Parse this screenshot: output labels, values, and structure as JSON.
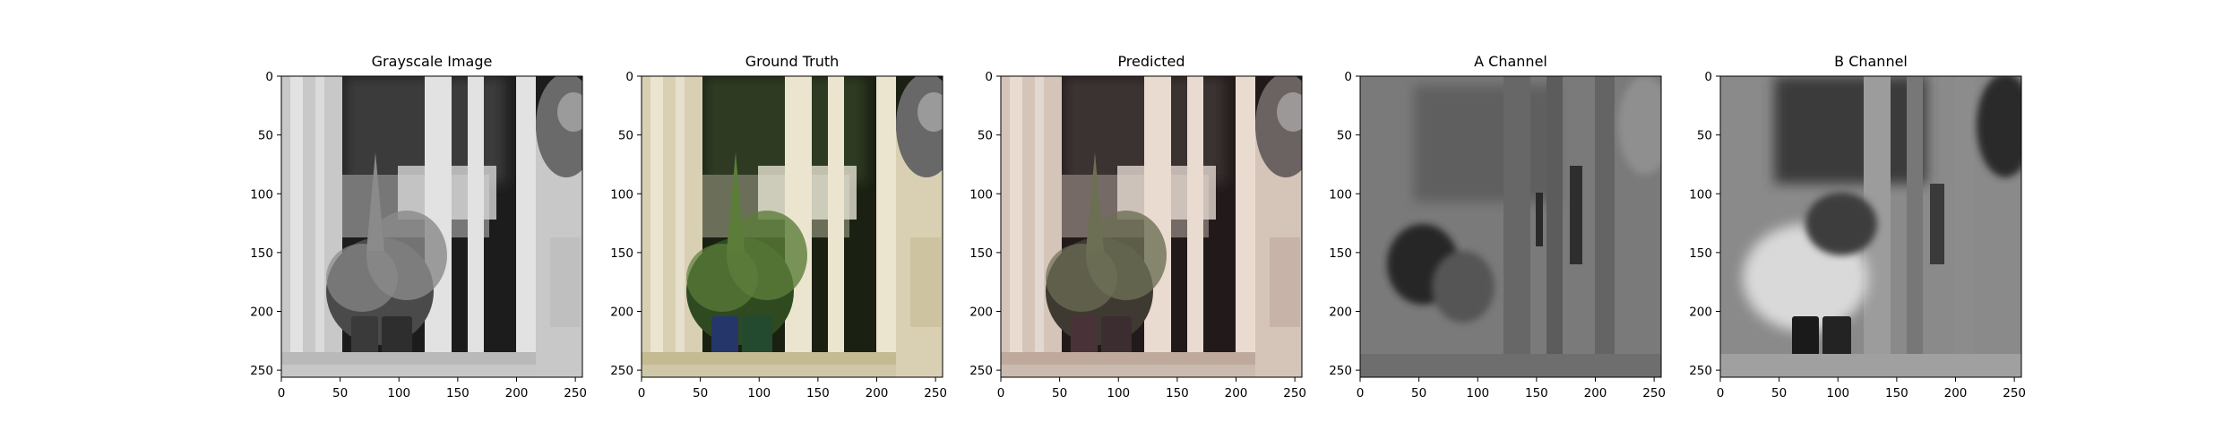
{
  "figure": {
    "background": "#ffffff"
  },
  "chart_data": [
    {
      "type": "image",
      "title": "Grayscale Image",
      "colormap": "gray",
      "image_size": [
        256,
        256
      ],
      "xlim": [
        0,
        256
      ],
      "ylim": [
        256,
        0
      ],
      "xticks": [
        0,
        50,
        100,
        150,
        200,
        250
      ],
      "yticks": [
        0,
        50,
        100,
        150,
        200,
        250
      ],
      "description_colors": {
        "dark": "#1e1e1e",
        "light": "#e6e6e6"
      }
    },
    {
      "type": "image",
      "title": "Ground Truth",
      "colormap": "rgb",
      "image_size": [
        256,
        256
      ],
      "xlim": [
        0,
        256
      ],
      "ylim": [
        256,
        0
      ],
      "xticks": [
        0,
        50,
        100,
        150,
        200,
        250
      ],
      "yticks": [
        0,
        50,
        100,
        150,
        200,
        250
      ],
      "description_colors": {
        "dark": "#1d2418",
        "light": "#ece6cf"
      }
    },
    {
      "type": "image",
      "title": "Predicted",
      "colormap": "rgb",
      "image_size": [
        256,
        256
      ],
      "xlim": [
        0,
        256
      ],
      "ylim": [
        256,
        0
      ],
      "xticks": [
        0,
        50,
        100,
        150,
        200,
        250
      ],
      "yticks": [
        0,
        50,
        100,
        150,
        200,
        250
      ],
      "description_colors": {
        "dark": "#221c1c",
        "light": "#eadcd0"
      }
    },
    {
      "type": "image",
      "title": "A Channel",
      "colormap": "gray",
      "image_size": [
        256,
        256
      ],
      "xlim": [
        0,
        256
      ],
      "ylim": [
        256,
        0
      ],
      "xticks": [
        0,
        50,
        100,
        150,
        200,
        250
      ],
      "yticks": [
        0,
        50,
        100,
        150,
        200,
        250
      ],
      "description_colors": {
        "dark": "#2a2a2a",
        "light": "#bdbdbd"
      }
    },
    {
      "type": "image",
      "title": "B Channel",
      "colormap": "gray",
      "image_size": [
        256,
        256
      ],
      "xlim": [
        0,
        256
      ],
      "ylim": [
        256,
        0
      ],
      "xticks": [
        0,
        50,
        100,
        150,
        200,
        250
      ],
      "yticks": [
        0,
        50,
        100,
        150,
        200,
        250
      ],
      "description_colors": {
        "dark": "#151515",
        "light": "#e0e0e0"
      }
    }
  ]
}
